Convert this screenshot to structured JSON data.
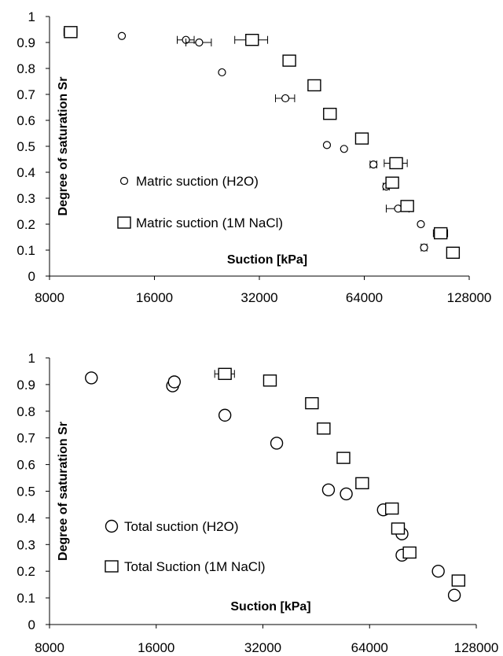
{
  "chart_data": [
    {
      "type": "scatter",
      "xscale": "log2",
      "xlim": [
        8000,
        128000
      ],
      "ylim": [
        0,
        1
      ],
      "xlabel": "Suction [kPa]",
      "ylabel": "Degree of saturation Sr",
      "xticks": [
        "8000",
        "16000",
        "32000",
        "64000",
        "128000"
      ],
      "yticks": [
        "0",
        "0.1",
        "0.2",
        "0.3",
        "0.4",
        "0.5",
        "0.6",
        "0.7",
        "0.8",
        "0.9",
        "1"
      ],
      "grid": false,
      "legend_position": "left",
      "series": [
        {
          "name": "Matric suction (H2O)",
          "marker": "circle-small",
          "points": [
            {
              "x": 12900,
              "y": 0.925,
              "xerr": 0
            },
            {
              "x": 19700,
              "y": 0.91,
              "xerr": 1100
            },
            {
              "x": 21500,
              "y": 0.9,
              "xerr": 1800
            },
            {
              "x": 25000,
              "y": 0.785,
              "xerr": 0
            },
            {
              "x": 38000,
              "y": 0.685,
              "xerr": 2400
            },
            {
              "x": 50000,
              "y": 0.505,
              "xerr": 0
            },
            {
              "x": 56000,
              "y": 0.49,
              "xerr": 0
            },
            {
              "x": 68000,
              "y": 0.43,
              "xerr": 1500
            },
            {
              "x": 74000,
              "y": 0.345,
              "xerr": 1500
            },
            {
              "x": 80000,
              "y": 0.26,
              "xerr": 6000
            },
            {
              "x": 93000,
              "y": 0.2,
              "xerr": 0
            },
            {
              "x": 95000,
              "y": 0.11,
              "xerr": 1800
            }
          ]
        },
        {
          "name": "Matric suction (1M NaCl)",
          "marker": "square",
          "points": [
            {
              "x": 9200,
              "y": 0.94,
              "xerr": 400
            },
            {
              "x": 30500,
              "y": 0.91,
              "xerr": 3300
            },
            {
              "x": 39000,
              "y": 0.83,
              "xerr": 1500
            },
            {
              "x": 46000,
              "y": 0.735,
              "xerr": 1000
            },
            {
              "x": 51000,
              "y": 0.625,
              "xerr": 1000
            },
            {
              "x": 63000,
              "y": 0.53,
              "xerr": 1500
            },
            {
              "x": 79000,
              "y": 0.435,
              "xerr": 6000
            },
            {
              "x": 77000,
              "y": 0.36,
              "xerr": 2500
            },
            {
              "x": 85000,
              "y": 0.27,
              "xerr": 2500
            },
            {
              "x": 106000,
              "y": 0.165,
              "xerr": 5000
            },
            {
              "x": 115000,
              "y": 0.09,
              "xerr": 2500
            }
          ]
        }
      ],
      "legend": [
        {
          "label": "Matric suction (H2O)",
          "marker": "circle-small"
        },
        {
          "label": "Matric suction (1M NaCl)",
          "marker": "square"
        }
      ]
    },
    {
      "type": "scatter",
      "xscale": "log2",
      "xlim": [
        8000,
        128000
      ],
      "ylim": [
        0,
        1
      ],
      "xlabel": "Suction [kPa]",
      "ylabel": "Degree of saturation Sr",
      "xticks": [
        "8000",
        "16000",
        "32000",
        "64000",
        "128000"
      ],
      "yticks": [
        "0",
        "0.1",
        "0.2",
        "0.3",
        "0.4",
        "0.5",
        "0.6",
        "0.7",
        "0.8",
        "0.9",
        "1"
      ],
      "grid": false,
      "legend_position": "left",
      "series": [
        {
          "name": "Total suction (H2O)",
          "marker": "circle",
          "points": [
            {
              "x": 10500,
              "y": 0.925,
              "xerr": 0
            },
            {
              "x": 17800,
              "y": 0.895,
              "xerr": 0
            },
            {
              "x": 18000,
              "y": 0.91,
              "xerr": 600
            },
            {
              "x": 25000,
              "y": 0.785,
              "xerr": 0
            },
            {
              "x": 35000,
              "y": 0.68,
              "xerr": 0
            },
            {
              "x": 49000,
              "y": 0.505,
              "xerr": 0
            },
            {
              "x": 55000,
              "y": 0.49,
              "xerr": 0
            },
            {
              "x": 70000,
              "y": 0.43,
              "xerr": 0
            },
            {
              "x": 79000,
              "y": 0.34,
              "xerr": 0
            },
            {
              "x": 79000,
              "y": 0.26,
              "xerr": 0
            },
            {
              "x": 100000,
              "y": 0.2,
              "xerr": 0
            },
            {
              "x": 111000,
              "y": 0.11,
              "xerr": 0
            }
          ]
        },
        {
          "name": "Total Suction (1M NaCl)",
          "marker": "square",
          "points": [
            {
              "x": 25000,
              "y": 0.94,
              "xerr": 1600
            },
            {
              "x": 33500,
              "y": 0.915,
              "xerr": 1200
            },
            {
              "x": 44000,
              "y": 0.83,
              "xerr": 1000
            },
            {
              "x": 47500,
              "y": 0.735,
              "xerr": 1000
            },
            {
              "x": 54000,
              "y": 0.625,
              "xerr": 0
            },
            {
              "x": 61000,
              "y": 0.53,
              "xerr": 1000
            },
            {
              "x": 74000,
              "y": 0.435,
              "xerr": 2500
            },
            {
              "x": 77000,
              "y": 0.36,
              "xerr": 3000
            },
            {
              "x": 83000,
              "y": 0.27,
              "xerr": 2500
            },
            {
              "x": 114000,
              "y": 0.165,
              "xerr": 2500
            }
          ]
        }
      ],
      "legend": [
        {
          "label": "Total suction (H2O)",
          "marker": "circle"
        },
        {
          "label": "Total Suction (1M NaCl)",
          "marker": "square"
        }
      ]
    }
  ]
}
